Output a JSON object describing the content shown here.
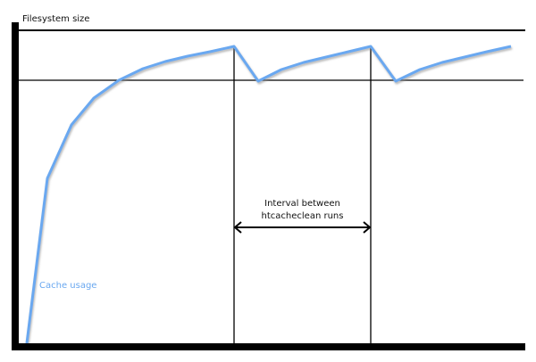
{
  "labels": {
    "y_axis": "Filesystem size",
    "interval_line1": "Interval between",
    "interval_line2": "htcacheclean runs",
    "series": "Cache usage"
  },
  "colors": {
    "curve": "#6aa8f0",
    "axes": "#000000"
  },
  "icons": {
    "arrow": "double-headed-arrow"
  }
}
